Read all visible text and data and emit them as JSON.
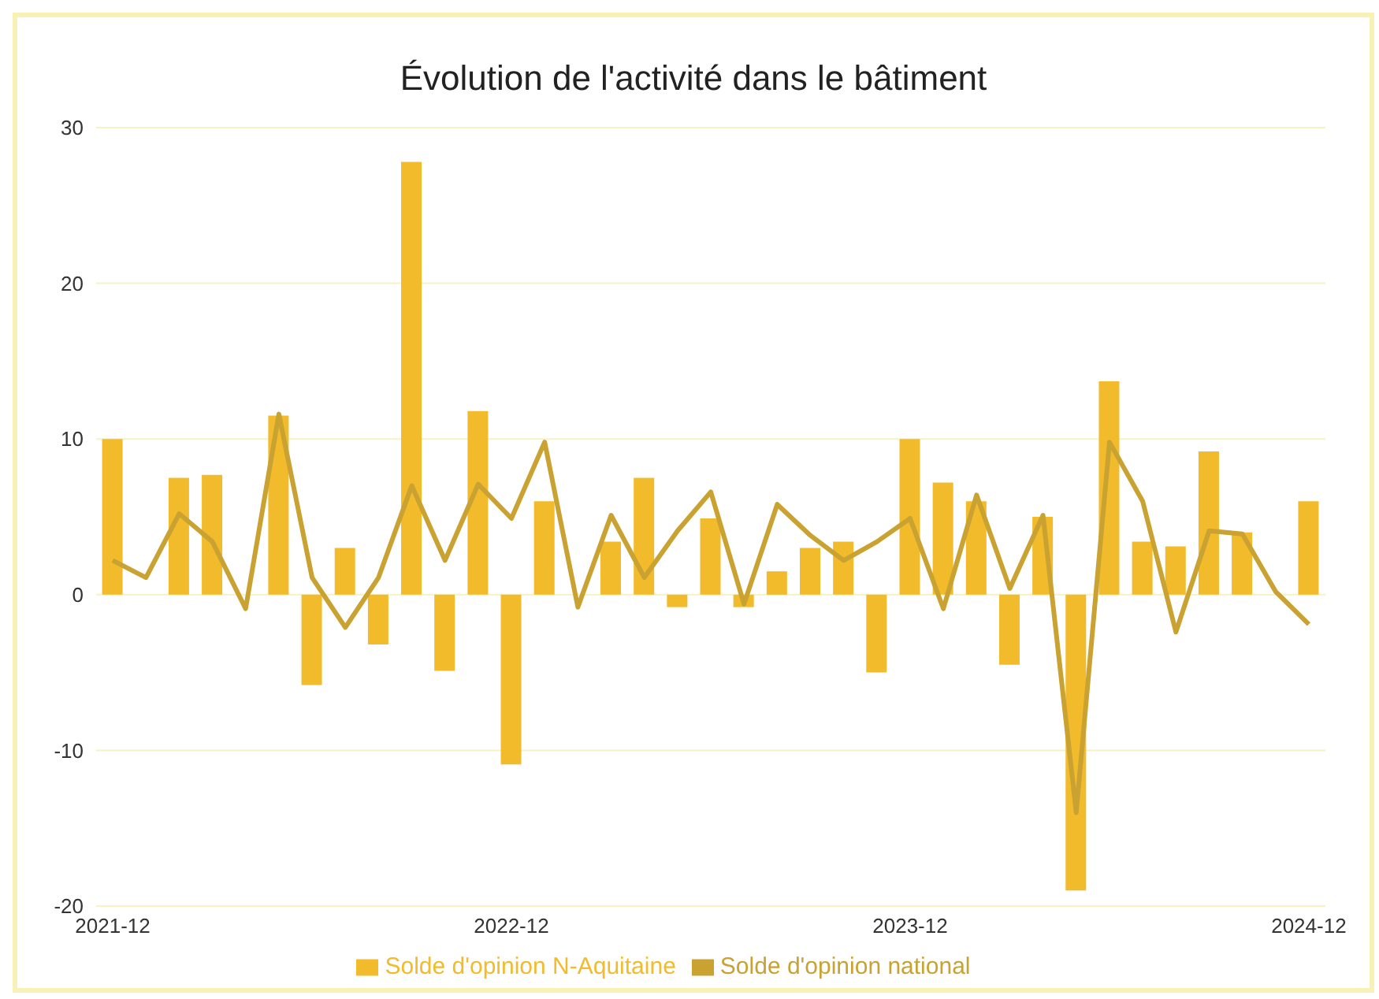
{
  "chart_data": {
    "type": "bar",
    "title": "Évolution de l'activité dans le bâtiment",
    "categories": [
      "2021-12",
      null,
      null,
      null,
      null,
      null,
      null,
      null,
      null,
      null,
      null,
      null,
      "2022-12",
      null,
      null,
      null,
      null,
      null,
      null,
      null,
      null,
      null,
      null,
      null,
      "2023-12",
      null,
      null,
      null,
      null,
      null,
      null,
      null,
      null,
      null,
      null,
      null,
      "2024-12"
    ],
    "series": [
      {
        "name": "Solde d'opinion N-Aquitaine",
        "color": "#f2bb2c",
        "values": [
          10,
          0,
          7.5,
          7.7,
          0,
          11.5,
          -5.8,
          3,
          -3.2,
          27.8,
          -4.9,
          11.8,
          -10.9,
          6,
          0,
          3.4,
          7.5,
          -0.8,
          4.9,
          -0.8,
          1.5,
          3,
          3.4,
          -5,
          10,
          7.2,
          6,
          -4.5,
          5,
          -19,
          13.7,
          3.4,
          3.1,
          9.2,
          4,
          0,
          6
        ]
      },
      {
        "name": "Solde d'opinion national",
        "type": "line",
        "color": "#c9a232",
        "values": [
          2.2,
          1.1,
          5.2,
          3.4,
          -0.9,
          11.6,
          1.1,
          -2.1,
          1.1,
          7,
          2.2,
          7.1,
          4.9,
          9.8,
          -0.8,
          5.1,
          1.1,
          4.1,
          6.6,
          -0.6,
          5.8,
          3.8,
          2.2,
          3.4,
          4.9,
          -0.9,
          6.4,
          0.4,
          5.1,
          -14,
          9.8,
          6,
          -2.4,
          4.1,
          3.9,
          0.2,
          -1.9
        ]
      }
    ],
    "ylim": [
      -20,
      30
    ],
    "yticks": [
      -20,
      -10,
      0,
      10,
      20,
      30
    ],
    "grid": "y",
    "legend": "bottom",
    "marker": "none",
    "line_style": "solid"
  }
}
